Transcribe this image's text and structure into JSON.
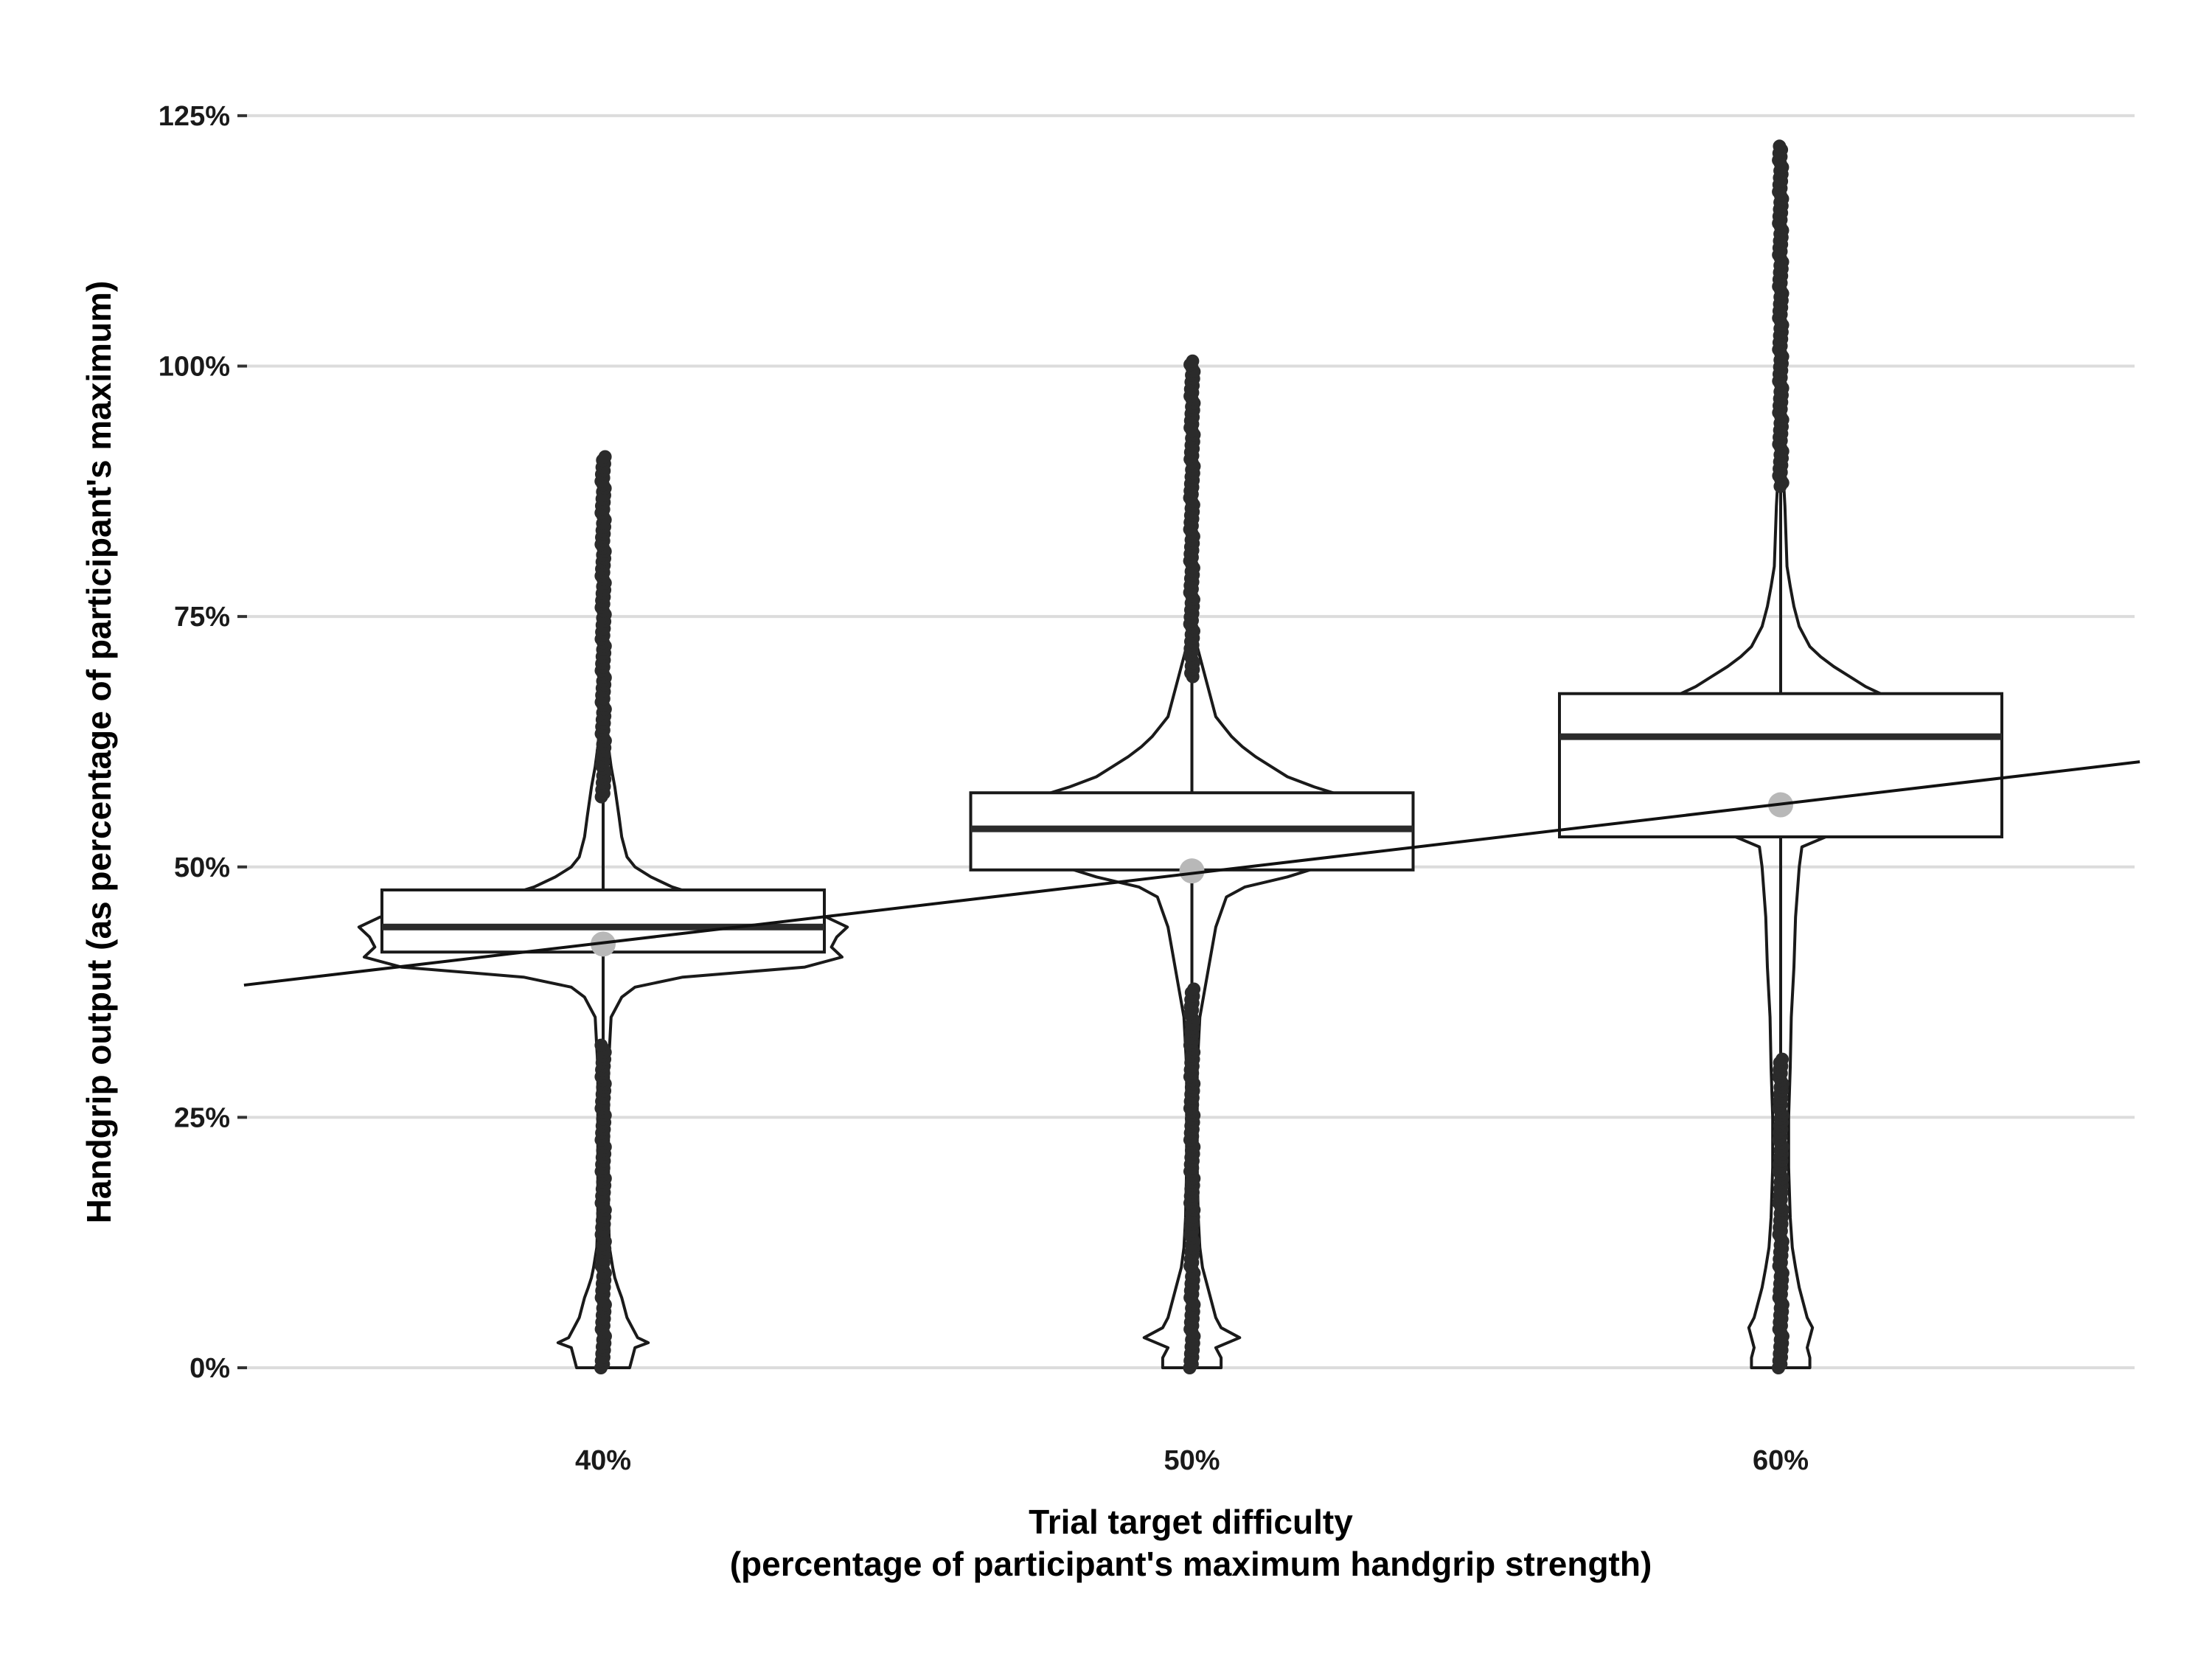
{
  "chart_data": {
    "type": "violin-box",
    "xlabel_lines": [
      "Trial target difficulty",
      "(percentage of participant's maximum handgrip strength)"
    ],
    "ylabel": "Handgrip output (as percentage of participant's maximum)",
    "ylim": [
      -12,
      127
    ],
    "y_ticks": [
      0,
      25,
      50,
      75,
      100,
      125
    ],
    "y_tick_labels": [
      "0%",
      "25%",
      "50%",
      "75%",
      "100%",
      "125%"
    ],
    "grid": "horizontal",
    "categories": [
      "40%",
      "50%",
      "60%"
    ],
    "category_positions": [
      40,
      50,
      60
    ],
    "xlim": [
      33.9,
      66.1
    ],
    "groups": [
      {
        "label": "40%",
        "box": {
          "q1": 41.5,
          "median": 44.0,
          "q3": 47.7,
          "whisker_low": 32.5,
          "whisker_high": 57.0
        },
        "mean": 42.3,
        "outliers_high_range": [
          57.0,
          91.0
        ],
        "outliers_low_range": [
          0,
          32.5
        ],
        "violin": [
          [
            0,
            0.5
          ],
          [
            1,
            0.55
          ],
          [
            2,
            0.6
          ],
          [
            2.5,
            0.85
          ],
          [
            3,
            0.65
          ],
          [
            4,
            0.55
          ],
          [
            5,
            0.45
          ],
          [
            6,
            0.4
          ],
          [
            7,
            0.35
          ],
          [
            8,
            0.28
          ],
          [
            9,
            0.22
          ],
          [
            10,
            0.18
          ],
          [
            12,
            0.12
          ],
          [
            15,
            0.1
          ],
          [
            20,
            0.1
          ],
          [
            25,
            0.1
          ],
          [
            30,
            0.1
          ],
          [
            35,
            0.15
          ],
          [
            37,
            0.35
          ],
          [
            38,
            0.6
          ],
          [
            39,
            1.5
          ],
          [
            40,
            3.8
          ],
          [
            41,
            4.5
          ],
          [
            42,
            4.3
          ],
          [
            43,
            4.4
          ],
          [
            44,
            4.6
          ],
          [
            45,
            4.2
          ],
          [
            46,
            2.5
          ],
          [
            47,
            1.9
          ],
          [
            48,
            1.3
          ],
          [
            49,
            0.9
          ],
          [
            50,
            0.6
          ],
          [
            51,
            0.45
          ],
          [
            53,
            0.35
          ],
          [
            55,
            0.3
          ],
          [
            58,
            0.22
          ],
          [
            60,
            0.15
          ],
          [
            62,
            0.1
          ],
          [
            65,
            0.05
          ],
          [
            68,
            0.02
          ]
        ]
      },
      {
        "label": "50%",
        "box": {
          "q1": 49.7,
          "median": 53.8,
          "q3": 57.4,
          "whisker_low": 38.0,
          "whisker_high": 69.0
        },
        "mean": 49.6,
        "outliers_high_range": [
          69.0,
          100.5
        ],
        "outliers_low_range": [
          0,
          38.0
        ],
        "violin": [
          [
            0,
            0.55
          ],
          [
            1,
            0.55
          ],
          [
            2,
            0.45
          ],
          [
            3,
            0.9
          ],
          [
            4,
            0.55
          ],
          [
            5,
            0.45
          ],
          [
            6,
            0.4
          ],
          [
            8,
            0.3
          ],
          [
            10,
            0.2
          ],
          [
            12,
            0.15
          ],
          [
            15,
            0.12
          ],
          [
            20,
            0.1
          ],
          [
            25,
            0.1
          ],
          [
            30,
            0.1
          ],
          [
            35,
            0.15
          ],
          [
            38,
            0.25
          ],
          [
            41,
            0.35
          ],
          [
            44,
            0.45
          ],
          [
            47,
            0.65
          ],
          [
            48,
            1.0
          ],
          [
            49,
            1.8
          ],
          [
            50,
            2.4
          ],
          [
            52,
            2.1
          ],
          [
            54,
            2.2
          ],
          [
            56,
            2.7
          ],
          [
            57,
            2.9
          ],
          [
            58,
            2.3
          ],
          [
            59,
            1.8
          ],
          [
            60,
            1.5
          ],
          [
            61,
            1.2
          ],
          [
            62,
            0.95
          ],
          [
            63,
            0.75
          ],
          [
            64,
            0.6
          ],
          [
            65,
            0.45
          ],
          [
            67,
            0.35
          ],
          [
            69,
            0.25
          ],
          [
            72,
            0.1
          ],
          [
            75,
            0.05
          ],
          [
            78,
            0.02
          ]
        ]
      },
      {
        "label": "60%",
        "box": {
          "q1": 53.0,
          "median": 63.0,
          "q3": 67.3,
          "whisker_low": 31.0,
          "whisker_high": 88.0
        },
        "mean": 56.2,
        "outliers_high_range": [
          88.0,
          122.0
        ],
        "outliers_low_range": [
          0,
          31.0
        ],
        "violin": [
          [
            0,
            0.55
          ],
          [
            1,
            0.55
          ],
          [
            2,
            0.5
          ],
          [
            3,
            0.55
          ],
          [
            4,
            0.6
          ],
          [
            5,
            0.5
          ],
          [
            6,
            0.45
          ],
          [
            8,
            0.35
          ],
          [
            10,
            0.28
          ],
          [
            12,
            0.22
          ],
          [
            15,
            0.18
          ],
          [
            20,
            0.15
          ],
          [
            25,
            0.15
          ],
          [
            30,
            0.18
          ],
          [
            35,
            0.2
          ],
          [
            40,
            0.25
          ],
          [
            45,
            0.28
          ],
          [
            50,
            0.35
          ],
          [
            52,
            0.4
          ],
          [
            54,
            1.3
          ],
          [
            56,
            2.0
          ],
          [
            58,
            1.8
          ],
          [
            60,
            1.7
          ],
          [
            62,
            1.6
          ],
          [
            64,
            1.7
          ],
          [
            66,
            1.9
          ],
          [
            67,
            2.0
          ],
          [
            68,
            1.6
          ],
          [
            69,
            1.3
          ],
          [
            70,
            1.0
          ],
          [
            71,
            0.75
          ],
          [
            72,
            0.55
          ],
          [
            73,
            0.45
          ],
          [
            74,
            0.35
          ],
          [
            76,
            0.25
          ],
          [
            78,
            0.18
          ],
          [
            80,
            0.12
          ],
          [
            83,
            0.1
          ],
          [
            86,
            0.08
          ],
          [
            88,
            0.06
          ],
          [
            91,
            0.03
          ],
          [
            95,
            0.01
          ]
        ]
      }
    ],
    "trend_line": {
      "x": [
        33.9,
        66.1
      ],
      "y": [
        38.2,
        60.5
      ]
    },
    "colors": {
      "outline": "#1a1a1a",
      "median": "#2b2b2b",
      "points": "#2b2b2b",
      "mean": "#b8b8b8",
      "grid": "#dcdcdc",
      "trend": "#111111"
    }
  }
}
